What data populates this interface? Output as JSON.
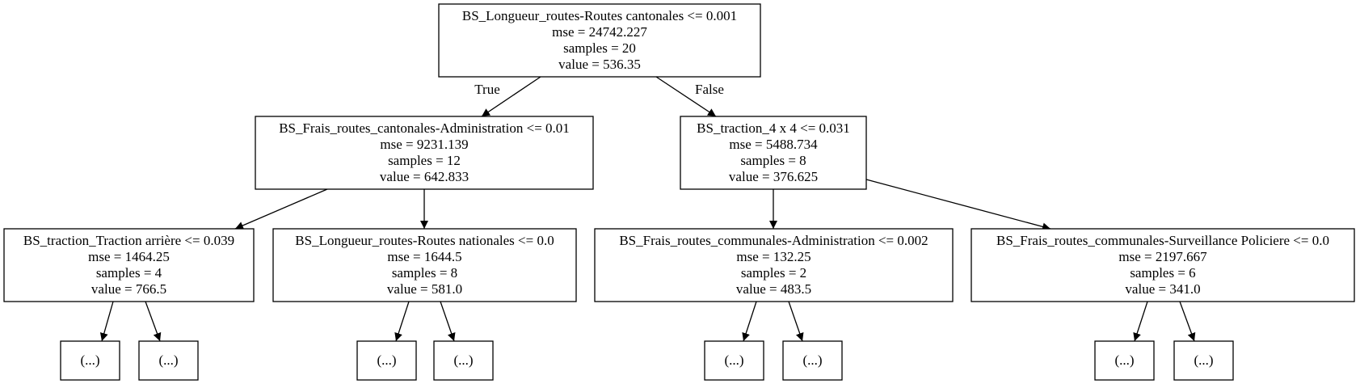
{
  "tree": {
    "nodes": [
      {
        "id": "n0",
        "lines": [
          "BS_Longueur_routes-Routes cantonales <= 0.001",
          "mse = 24742.227",
          "samples = 20",
          "value = 536.35"
        ]
      },
      {
        "id": "n1",
        "lines": [
          "BS_Frais_routes_cantonales-Administration <= 0.01",
          "mse = 9231.139",
          "samples = 12",
          "value = 642.833"
        ]
      },
      {
        "id": "n2",
        "lines": [
          "BS_traction_4 x 4 <= 0.031",
          "mse = 5488.734",
          "samples = 8",
          "value = 376.625"
        ]
      },
      {
        "id": "n3",
        "lines": [
          "BS_traction_Traction arrière <= 0.039",
          "mse = 1464.25",
          "samples = 4",
          "value = 766.5"
        ]
      },
      {
        "id": "n4",
        "lines": [
          "BS_Longueur_routes-Routes nationales <= 0.0",
          "mse = 1644.5",
          "samples = 8",
          "value = 581.0"
        ]
      },
      {
        "id": "n5",
        "lines": [
          "BS_Frais_routes_communales-Administration <= 0.002",
          "mse = 132.25",
          "samples = 2",
          "value = 483.5"
        ]
      },
      {
        "id": "n6",
        "lines": [
          "BS_Frais_routes_communales-Surveillance Policiere <= 0.0",
          "mse = 2197.667",
          "samples = 6",
          "value = 341.0"
        ]
      },
      {
        "id": "l1",
        "lines": [
          "(...)"
        ]
      },
      {
        "id": "l2",
        "lines": [
          "(...)"
        ]
      },
      {
        "id": "l3",
        "lines": [
          "(...)"
        ]
      },
      {
        "id": "l4",
        "lines": [
          "(...)"
        ]
      },
      {
        "id": "l5",
        "lines": [
          "(...)"
        ]
      },
      {
        "id": "l6",
        "lines": [
          "(...)"
        ]
      },
      {
        "id": "l7",
        "lines": [
          "(...)"
        ]
      },
      {
        "id": "l8",
        "lines": [
          "(...)"
        ]
      }
    ],
    "edges": [
      {
        "from": "n0",
        "to": "n1",
        "label": "True"
      },
      {
        "from": "n0",
        "to": "n2",
        "label": "False"
      },
      {
        "from": "n1",
        "to": "n3"
      },
      {
        "from": "n1",
        "to": "n4"
      },
      {
        "from": "n2",
        "to": "n5"
      },
      {
        "from": "n2",
        "to": "n6"
      },
      {
        "from": "n3",
        "to": "l1"
      },
      {
        "from": "n3",
        "to": "l2"
      },
      {
        "from": "n4",
        "to": "l3"
      },
      {
        "from": "n4",
        "to": "l4"
      },
      {
        "from": "n5",
        "to": "l5"
      },
      {
        "from": "n5",
        "to": "l6"
      },
      {
        "from": "n6",
        "to": "l7"
      },
      {
        "from": "n6",
        "to": "l8"
      }
    ]
  }
}
